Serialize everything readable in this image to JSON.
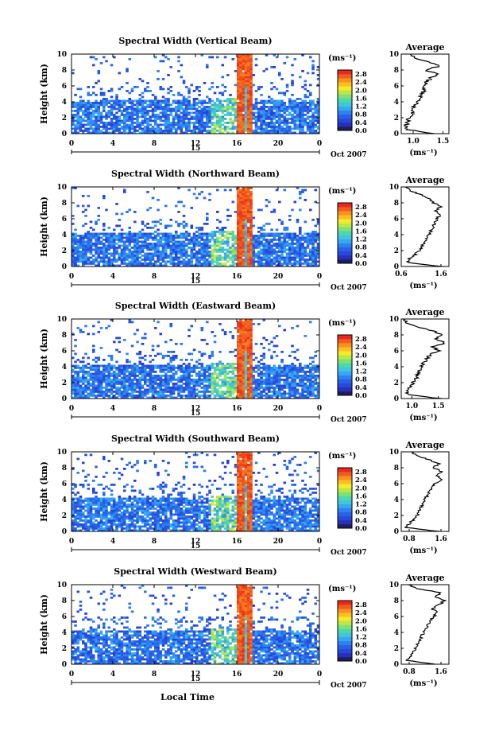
{
  "x_label": "Local Time",
  "chart_data": [
    {
      "type": "heatmap",
      "title": "Spectral Width (Vertical Beam)",
      "ylabel": "Height (km)",
      "ylim": [
        0,
        10
      ],
      "y_ticks": [
        "0",
        "2",
        "4",
        "6",
        "8",
        "10"
      ],
      "xlim": [
        0,
        24
      ],
      "x_ticks": [
        "0",
        "4",
        "8",
        "12",
        "16",
        "20",
        "0"
      ],
      "date_marker": "15",
      "date_label": "Oct 2007",
      "colorbar": {
        "unit": "(ms⁻¹)",
        "ticks": [
          "0.0",
          "0.4",
          "0.8",
          "1.2",
          "1.6",
          "2.0",
          "2.4",
          "2.8"
        ],
        "range": [
          0,
          3.0
        ]
      },
      "average": {
        "title": "Average",
        "xlabel": "(ms⁻¹)",
        "x_ticks": [
          "1.0",
          "1.5"
        ],
        "xlim": [
          0.8,
          1.6
        ],
        "height": [
          0,
          0.5,
          1,
          1.5,
          2,
          2.5,
          3,
          3.5,
          4,
          4.5,
          5,
          5.5,
          6,
          6.5,
          7,
          7.5,
          8,
          8.5,
          9,
          9.5,
          10
        ],
        "value": [
          1.35,
          0.92,
          0.88,
          0.9,
          0.94,
          0.98,
          1.0,
          1.02,
          1.06,
          1.1,
          1.15,
          1.18,
          1.2,
          1.22,
          1.3,
          1.42,
          1.2,
          1.45,
          1.25,
          1.05,
          0.95
        ]
      }
    },
    {
      "type": "heatmap",
      "title": "Spectral Width (Northward Beam)",
      "ylabel": "Height (km)",
      "ylim": [
        0,
        10
      ],
      "y_ticks": [
        "0",
        "2",
        "4",
        "6",
        "8",
        "10"
      ],
      "xlim": [
        0,
        24
      ],
      "x_ticks": [
        "0",
        "4",
        "8",
        "12",
        "16",
        "20",
        "0"
      ],
      "date_marker": "15",
      "date_label": "Oct 2007",
      "colorbar": {
        "unit": "(ms⁻¹)",
        "ticks": [
          "0.0",
          "0.4",
          "0.8",
          "1.2",
          "1.6",
          "2.0",
          "2.4",
          "2.8"
        ],
        "range": [
          0,
          3.0
        ]
      },
      "average": {
        "title": "Average",
        "xlabel": "(ms⁻¹)",
        "x_ticks": [
          "0.6",
          "1.6"
        ],
        "xlim": [
          0.6,
          1.8
        ],
        "height": [
          0,
          0.5,
          1,
          1.5,
          2,
          2.5,
          3,
          3.5,
          4,
          4.5,
          5,
          5.5,
          6,
          6.5,
          7,
          7.5,
          8,
          8.5,
          9,
          9.5,
          10
        ],
        "value": [
          1.6,
          0.75,
          0.8,
          0.95,
          1.05,
          1.12,
          1.18,
          1.25,
          1.3,
          1.35,
          1.4,
          1.45,
          1.5,
          1.58,
          1.45,
          1.6,
          1.42,
          1.3,
          1.1,
          0.85,
          0.7
        ]
      }
    },
    {
      "type": "heatmap",
      "title": "Spectral Width (Eastward Beam)",
      "ylabel": "Height (km)",
      "ylim": [
        0,
        10
      ],
      "y_ticks": [
        "0",
        "2",
        "4",
        "6",
        "8",
        "10"
      ],
      "xlim": [
        0,
        24
      ],
      "x_ticks": [
        "0",
        "4",
        "8",
        "12",
        "16",
        "20",
        "0"
      ],
      "date_marker": "15",
      "date_label": "Oct 2007",
      "colorbar": {
        "unit": "(ms⁻¹)",
        "ticks": [
          "0.0",
          "0.4",
          "0.8",
          "1.2",
          "1.6",
          "2.0",
          "2.4",
          "2.8"
        ],
        "range": [
          0,
          3.0
        ]
      },
      "average": {
        "title": "Average",
        "xlabel": "(ms⁻¹)",
        "x_ticks": [
          "1.0",
          "1.5"
        ],
        "xlim": [
          0.8,
          1.7
        ],
        "height": [
          0,
          0.5,
          1,
          1.5,
          2,
          2.5,
          3,
          3.5,
          4,
          4.5,
          5,
          5.5,
          6,
          6.5,
          7,
          7.5,
          8,
          8.5,
          9,
          9.5,
          10
        ],
        "value": [
          1.55,
          0.9,
          0.92,
          0.98,
          1.02,
          1.08,
          1.1,
          1.14,
          1.18,
          1.22,
          1.28,
          1.35,
          1.5,
          1.4,
          1.62,
          1.45,
          1.6,
          1.38,
          1.1,
          0.9,
          0.88
        ]
      }
    },
    {
      "type": "heatmap",
      "title": "Spectral Width (Southward Beam)",
      "ylabel": "Height (km)",
      "ylim": [
        0,
        10
      ],
      "y_ticks": [
        "0",
        "2",
        "4",
        "6",
        "8",
        "10"
      ],
      "xlim": [
        0,
        24
      ],
      "x_ticks": [
        "0",
        "4",
        "8",
        "12",
        "16",
        "20",
        "0"
      ],
      "date_marker": "15",
      "date_label": "Oct 2007",
      "colorbar": {
        "unit": "(ms⁻¹)",
        "ticks": [
          "0.0",
          "0.4",
          "0.8",
          "1.2",
          "1.6",
          "2.0",
          "2.4",
          "2.8"
        ],
        "range": [
          0,
          3.0
        ]
      },
      "average": {
        "title": "Average",
        "xlabel": "(ms⁻¹)",
        "x_ticks": [
          "0.8",
          "1.6"
        ],
        "xlim": [
          0.6,
          1.8
        ],
        "height": [
          0,
          0.5,
          1,
          1.5,
          2,
          2.5,
          3,
          3.5,
          4,
          4.5,
          5,
          5.5,
          6,
          6.5,
          7,
          7.5,
          8,
          8.5,
          9,
          9.5,
          10
        ],
        "value": [
          1.55,
          0.72,
          0.8,
          0.92,
          1.0,
          1.05,
          1.1,
          1.15,
          1.2,
          1.25,
          1.3,
          1.38,
          1.45,
          1.6,
          1.5,
          1.62,
          1.4,
          1.55,
          1.3,
          1.0,
          0.85
        ]
      }
    },
    {
      "type": "heatmap",
      "title": "Spectral Width (Westward Beam)",
      "ylabel": "Height (km)",
      "ylim": [
        0,
        10
      ],
      "y_ticks": [
        "0",
        "2",
        "4",
        "6",
        "8",
        "10"
      ],
      "xlim": [
        0,
        24
      ],
      "x_ticks": [
        "0",
        "4",
        "8",
        "12",
        "16",
        "20",
        "0"
      ],
      "date_marker": "15",
      "date_label": "Oct 2007",
      "colorbar": {
        "unit": "(ms⁻¹)",
        "ticks": [
          "0.0",
          "0.4",
          "0.8",
          "1.2",
          "1.6",
          "2.0",
          "2.4",
          "2.8"
        ],
        "range": [
          0,
          3.0
        ]
      },
      "average": {
        "title": "Average",
        "xlabel": "(ms⁻¹)",
        "x_ticks": [
          "0.8",
          "1.6"
        ],
        "xlim": [
          0.6,
          1.8
        ],
        "height": [
          0,
          0.5,
          1,
          1.5,
          2,
          2.5,
          3,
          3.5,
          4,
          4.5,
          5,
          5.5,
          6,
          6.5,
          7,
          7.5,
          8,
          8.5,
          9,
          9.5,
          10
        ],
        "value": [
          1.45,
          0.75,
          0.82,
          0.9,
          0.96,
          1.02,
          1.06,
          1.12,
          1.16,
          1.22,
          1.28,
          1.35,
          1.42,
          1.5,
          1.38,
          1.55,
          1.7,
          1.45,
          1.6,
          1.0,
          0.78
        ]
      }
    }
  ]
}
